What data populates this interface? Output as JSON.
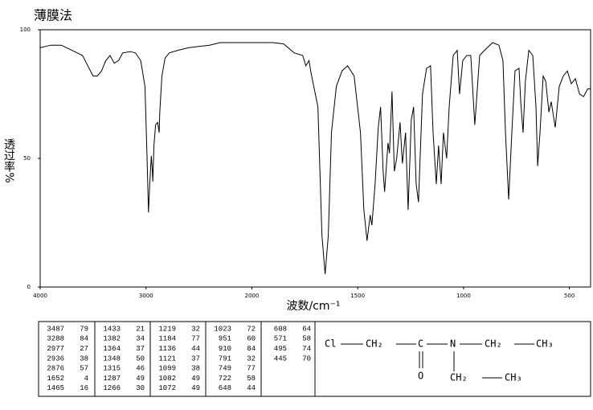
{
  "chart_data": {
    "type": "line",
    "title": "薄膜法",
    "xlabel": "波数/cm⁻¹",
    "ylabel": "透过率%",
    "color": "#000000",
    "x": [
      4000,
      3900,
      3800,
      3700,
      3600,
      3550,
      3500,
      3460,
      3420,
      3380,
      3340,
      3300,
      3260,
      3220,
      3150,
      3100,
      3050,
      3010,
      2990,
      2977,
      2965,
      2950,
      2940,
      2936,
      2925,
      2910,
      2890,
      2876,
      2870,
      2850,
      2820,
      2780,
      2700,
      2600,
      2500,
      2400,
      2300,
      2200,
      2100,
      2000,
      1900,
      1850,
      1800,
      1760,
      1745,
      1730,
      1720,
      1688,
      1669,
      1654,
      1639,
      1624,
      1601,
      1574,
      1548,
      1517,
      1487,
      1471,
      1456,
      1441,
      1433,
      1418,
      1403,
      1392,
      1380,
      1373,
      1357,
      1350,
      1338,
      1327,
      1316,
      1300,
      1289,
      1274,
      1262,
      1247,
      1236,
      1224,
      1213,
      1194,
      1175,
      1156,
      1144,
      1129,
      1118,
      1106,
      1095,
      1080,
      1068,
      1049,
      1030,
      1019,
      1004,
      985,
      966,
      947,
      924,
      901,
      863,
      833,
      814,
      802,
      787,
      772,
      757,
      738,
      730,
      719,
      708,
      692,
      673,
      658,
      650,
      639,
      624,
      612,
      597,
      586,
      567,
      548,
      529,
      510,
      491,
      472,
      452,
      433,
      414,
      400
    ],
    "values": [
      93,
      94,
      94,
      92,
      90,
      86,
      82,
      82,
      84,
      88,
      90,
      87,
      88,
      91,
      91.5,
      91,
      88,
      78,
      50,
      29,
      40,
      51,
      45,
      41,
      55,
      63,
      64,
      60,
      68,
      82,
      89,
      91,
      92,
      93,
      93.5,
      94,
      95,
      95,
      95,
      95,
      95,
      94.5,
      91,
      90,
      86,
      88,
      83,
      70,
      20,
      5,
      20,
      60,
      78,
      84,
      86,
      82,
      60,
      30,
      18,
      28,
      24,
      40,
      62,
      70,
      45,
      37,
      56,
      52,
      76,
      45,
      50,
      64,
      48,
      60,
      30,
      65,
      70,
      40,
      33,
      75,
      85,
      86,
      60,
      40,
      55,
      40,
      60,
      50,
      70,
      90,
      92,
      75,
      88,
      90,
      90,
      63,
      90,
      92,
      95,
      94,
      88,
      60,
      34,
      60,
      84,
      85,
      72,
      60,
      80,
      92,
      90,
      70,
      47,
      60,
      82,
      80,
      68,
      72,
      62,
      78,
      82,
      84,
      79,
      81,
      75,
      74,
      77,
      77
    ],
    "xlim": [
      4000,
      400
    ],
    "ylim": [
      0,
      100
    ],
    "xticks": [
      4000,
      3000,
      2000,
      1500,
      1000,
      500
    ],
    "yticks": [
      0,
      50,
      100
    ]
  },
  "peak_table": {
    "columns": [
      [
        [
          3487,
          79
        ],
        [
          3288,
          84
        ],
        [
          2977,
          27
        ],
        [
          2936,
          38
        ],
        [
          2876,
          57
        ],
        [
          1652,
          4
        ],
        [
          1465,
          16
        ]
      ],
      [
        [
          1433,
          21
        ],
        [
          1382,
          34
        ],
        [
          1364,
          37
        ],
        [
          1348,
          50
        ],
        [
          1315,
          46
        ],
        [
          1287,
          49
        ],
        [
          1266,
          30
        ]
      ],
      [
        [
          1219,
          32
        ],
        [
          1184,
          77
        ],
        [
          1136,
          44
        ],
        [
          1121,
          37
        ],
        [
          1099,
          38
        ],
        [
          1082,
          49
        ],
        [
          1072,
          49
        ]
      ],
      [
        [
          1023,
          72
        ],
        [
          951,
          60
        ],
        [
          910,
          84
        ],
        [
          791,
          32
        ],
        [
          749,
          77
        ],
        [
          722,
          58
        ],
        [
          648,
          44
        ]
      ],
      [
        [
          608,
          64
        ],
        [
          571,
          58
        ],
        [
          495,
          74
        ],
        [
          445,
          70
        ]
      ]
    ]
  },
  "structure": {
    "atoms": [
      "Cl",
      "CH₂",
      "C",
      "N",
      "CH₂",
      "CH₃",
      "O",
      "CH₂",
      "CH₃"
    ]
  }
}
